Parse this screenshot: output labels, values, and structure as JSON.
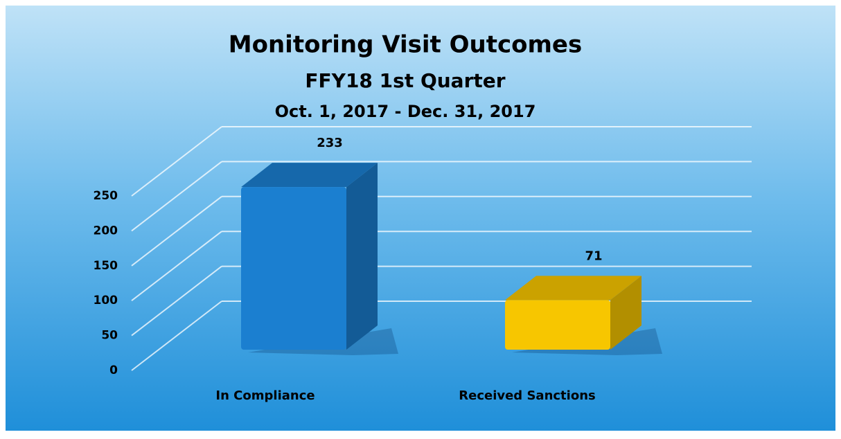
{
  "chart_data": {
    "type": "bar3d",
    "title": "Monitoring Visit Outcomes",
    "subtitle": "FFY18 1st Quarter",
    "date_range": "Oct. 1, 2017 - Dec. 31, 2017",
    "categories": [
      "In Compliance",
      "Received Sanctions"
    ],
    "values": [
      233,
      71
    ],
    "colors": [
      "#1b7fd0",
      "#f7c600"
    ],
    "ylim": [
      0,
      250
    ],
    "yticks": [
      0,
      50,
      100,
      150,
      200,
      250
    ],
    "grid": true
  }
}
